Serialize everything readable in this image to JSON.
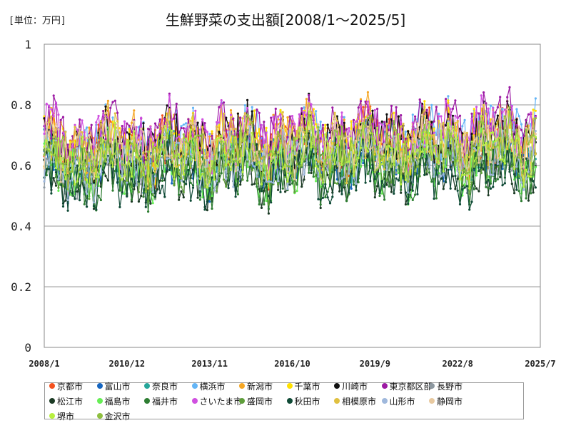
{
  "unit_label": "[単位：万円]",
  "title": "生鮮野菜の支出額[2008/1～2025/5]",
  "chart_data": {
    "type": "line",
    "title": "生鮮野菜の支出額[2008/1～2025/5]",
    "unit": "[単位：万円]",
    "xlabel": "",
    "ylabel": "",
    "x_start": "2008/1",
    "x_end": "2025/5",
    "x_axis_range": [
      "2008/1",
      "2025/7"
    ],
    "x_tick_labels": [
      "2008/1",
      "2010/12",
      "2013/11",
      "2016/10",
      "2019/9",
      "2022/8",
      "2025/7"
    ],
    "ylim": [
      0,
      1
    ],
    "y_tick_labels": [
      "0",
      "0.2",
      "0.4",
      "0.6",
      "0.8",
      "1"
    ],
    "grid": true,
    "legend_position": "bottom",
    "series": [
      {
        "name": "京都市",
        "color": "#f4511e",
        "base": 0.64,
        "amp": 0.09,
        "lo": 0.48,
        "hi": 0.86,
        "seed": 1
      },
      {
        "name": "富山市",
        "color": "#1565c0",
        "base": 0.6,
        "amp": 0.09,
        "lo": 0.44,
        "hi": 0.86,
        "seed": 2
      },
      {
        "name": "奈良市",
        "color": "#26a69a",
        "base": 0.62,
        "amp": 0.08,
        "lo": 0.47,
        "hi": 0.84,
        "seed": 3
      },
      {
        "name": "横浜市",
        "color": "#64b5f6",
        "base": 0.67,
        "amp": 0.09,
        "lo": 0.5,
        "hi": 0.93,
        "seed": 4
      },
      {
        "name": "新潟市",
        "color": "#f5a623",
        "base": 0.66,
        "amp": 0.1,
        "lo": 0.48,
        "hi": 0.93,
        "seed": 5
      },
      {
        "name": "千葉市",
        "color": "#ffe000",
        "base": 0.66,
        "amp": 0.09,
        "lo": 0.5,
        "hi": 0.9,
        "seed": 6
      },
      {
        "name": "川崎市",
        "color": "#111111",
        "base": 0.66,
        "amp": 0.09,
        "lo": 0.45,
        "hi": 0.89,
        "seed": 7
      },
      {
        "name": "東京都区部",
        "color": "#9c1aa3",
        "base": 0.7,
        "amp": 0.08,
        "lo": 0.52,
        "hi": 0.93,
        "seed": 8
      },
      {
        "name": "長野市",
        "color": "#8d98a0",
        "base": 0.58,
        "amp": 0.08,
        "lo": 0.44,
        "hi": 0.8,
        "seed": 9
      },
      {
        "name": "松江市",
        "color": "#1b3a24",
        "base": 0.56,
        "amp": 0.09,
        "lo": 0.38,
        "hi": 0.8,
        "seed": 10
      },
      {
        "name": "福島市",
        "color": "#66ee55",
        "base": 0.58,
        "amp": 0.08,
        "lo": 0.24,
        "hi": 0.8,
        "seed": 11
      },
      {
        "name": "福井市",
        "color": "#2e7d32",
        "base": 0.56,
        "amp": 0.09,
        "lo": 0.4,
        "hi": 0.84,
        "seed": 12
      },
      {
        "name": "さいたま市",
        "color": "#d050e0",
        "base": 0.68,
        "amp": 0.09,
        "lo": 0.5,
        "hi": 0.97,
        "seed": 13
      },
      {
        "name": "盛岡市",
        "color": "#5e9e3a",
        "base": 0.58,
        "amp": 0.08,
        "lo": 0.42,
        "hi": 0.82,
        "seed": 14
      },
      {
        "name": "秋田市",
        "color": "#0f4a36",
        "base": 0.55,
        "amp": 0.09,
        "lo": 0.37,
        "hi": 0.78,
        "seed": 15
      },
      {
        "name": "相模原市",
        "color": "#e0c040",
        "base": 0.65,
        "amp": 0.09,
        "lo": 0.48,
        "hi": 0.88,
        "seed": 16
      },
      {
        "name": "山形市",
        "color": "#9fb8dc",
        "base": 0.6,
        "amp": 0.08,
        "lo": 0.45,
        "hi": 0.82,
        "seed": 17
      },
      {
        "name": "静岡市",
        "color": "#e8c9a0",
        "base": 0.64,
        "amp": 0.08,
        "lo": 0.48,
        "hi": 0.84,
        "seed": 18
      },
      {
        "name": "堺市",
        "color": "#b8f040",
        "base": 0.62,
        "amp": 0.08,
        "lo": 0.46,
        "hi": 0.84,
        "seed": 19
      },
      {
        "name": "金沢市",
        "color": "#8fbf40",
        "base": 0.63,
        "amp": 0.08,
        "lo": 0.47,
        "hi": 0.86,
        "seed": 20
      }
    ]
  }
}
